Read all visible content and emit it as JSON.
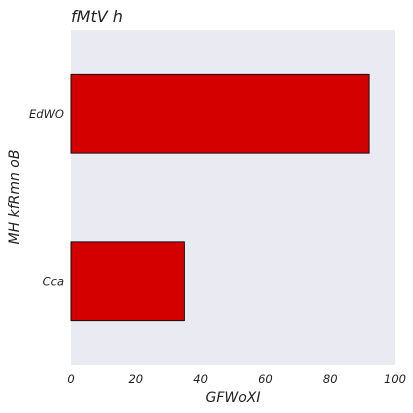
{
  "chart_data": {
    "type": "bar",
    "orientation": "horizontal",
    "title": "fMtV h",
    "xlabel": "GFWoXI",
    "ylabel": "MH kfRmn oB",
    "categories": [
      "EdWO",
      "Cca"
    ],
    "values": [
      92,
      35
    ],
    "xlim": [
      0,
      100
    ],
    "xticks": [
      0,
      20,
      40,
      60,
      80,
      100
    ],
    "grid": false,
    "legend": "none",
    "colors": {
      "bar": "#d40000",
      "bar_edge": "#111111",
      "plot_background": "#eaeaf2"
    }
  }
}
